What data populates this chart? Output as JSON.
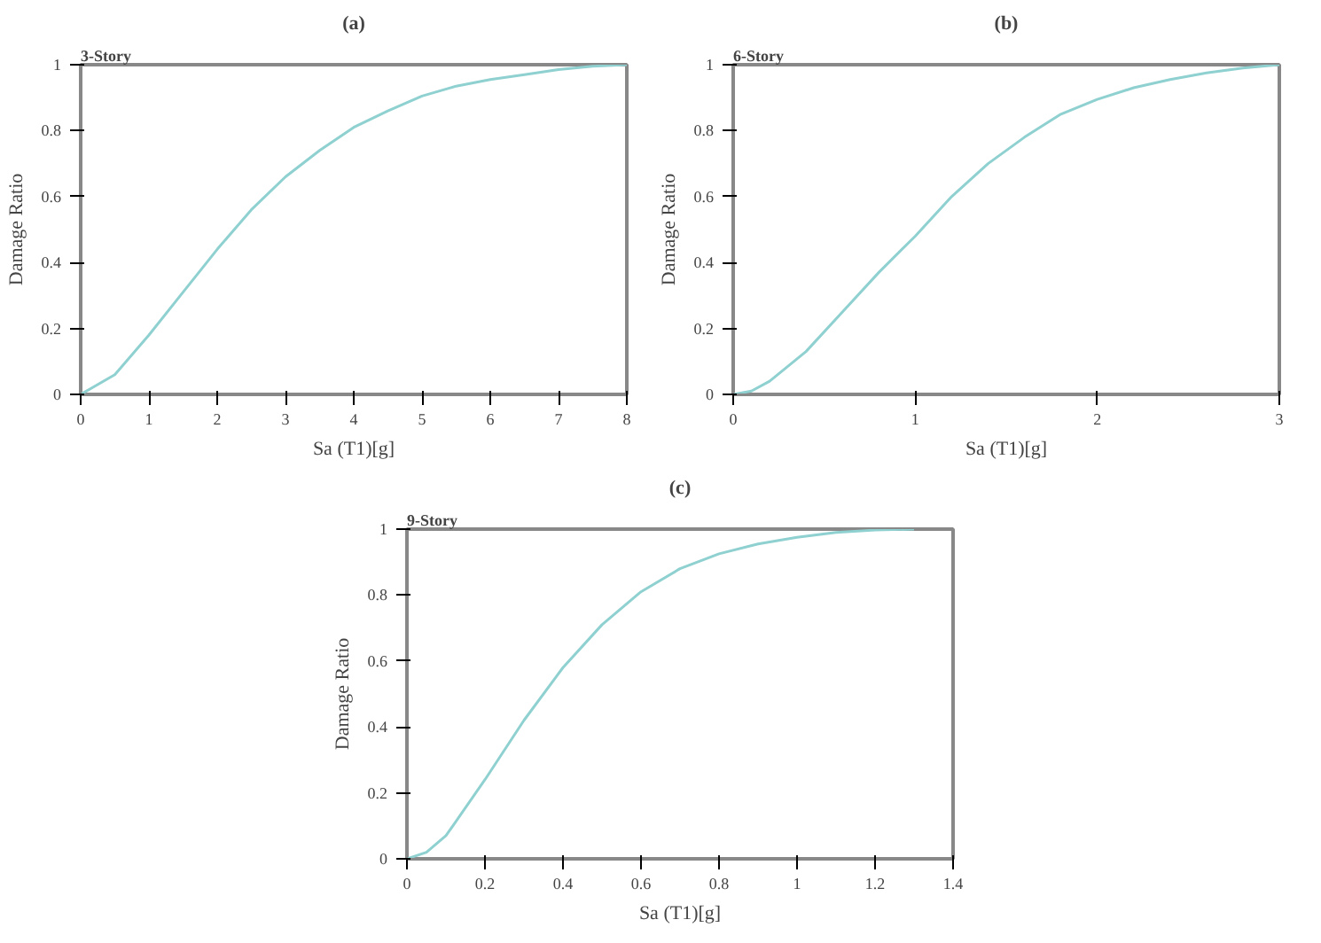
{
  "chart_data": [
    {
      "type": "line",
      "title": "(a)",
      "xlabel": "Sa (T1)[g]",
      "ylabel": "Damage Ratio",
      "annotations": [
        "3-Story"
      ],
      "x": [
        0,
        0.5,
        1,
        1.5,
        2,
        2.5,
        3,
        3.5,
        4,
        4.5,
        5,
        5.5,
        6,
        6.5,
        7,
        7.5,
        8
      ],
      "series": [
        {
          "color": "#8fd0d0",
          "values": [
            0,
            0.06,
            0.18,
            0.31,
            0.44,
            0.56,
            0.66,
            0.74,
            0.81,
            0.86,
            0.905,
            0.935,
            0.955,
            0.97,
            0.985,
            0.995,
            1
          ]
        }
      ],
      "xlim": [
        0,
        8
      ],
      "xticks": [
        0,
        1,
        2,
        3,
        4,
        5,
        6,
        7,
        8
      ],
      "ylim": [
        0,
        1
      ],
      "yticks": [
        0,
        0.2,
        0.4,
        0.6,
        0.8,
        1
      ],
      "grid": false,
      "line_style": "solid"
    },
    {
      "type": "line",
      "title": "(b)",
      "xlabel": "Sa (T1)[g]",
      "ylabel": "Damage Ratio",
      "annotations": [
        "6-Story"
      ],
      "x": [
        0,
        0.1,
        0.2,
        0.4,
        0.6,
        0.8,
        1,
        1.2,
        1.4,
        1.6,
        1.8,
        2,
        2.2,
        2.4,
        2.6,
        2.8,
        3
      ],
      "series": [
        {
          "color": "#8fd0d0",
          "values": [
            0,
            0.01,
            0.04,
            0.13,
            0.25,
            0.37,
            0.48,
            0.6,
            0.7,
            0.78,
            0.85,
            0.895,
            0.93,
            0.955,
            0.975,
            0.99,
            1
          ]
        }
      ],
      "xlim": [
        0,
        3
      ],
      "xticks": [
        0,
        1,
        2,
        3
      ],
      "ylim": [
        0,
        1
      ],
      "yticks": [
        0,
        0.2,
        0.4,
        0.6,
        0.8,
        1
      ],
      "grid": false,
      "line_style": "solid"
    },
    {
      "type": "line",
      "title": "(c)",
      "xlabel": "Sa (T1)[g]",
      "ylabel": "Damage Ratio",
      "annotations": [
        "9-Story"
      ],
      "x": [
        0,
        0.05,
        0.1,
        0.2,
        0.3,
        0.4,
        0.5,
        0.6,
        0.7,
        0.8,
        0.9,
        1,
        1.1,
        1.2,
        1.3
      ],
      "series": [
        {
          "color": "#8fd0d0",
          "values": [
            0,
            0.02,
            0.07,
            0.24,
            0.42,
            0.58,
            0.71,
            0.81,
            0.88,
            0.925,
            0.955,
            0.975,
            0.99,
            0.997,
            1
          ]
        }
      ],
      "xlim": [
        0,
        1.4
      ],
      "xticks": [
        0,
        0.2,
        0.4,
        0.6,
        0.8,
        1,
        1.2,
        1.4
      ],
      "ylim": [
        0,
        1
      ],
      "yticks": [
        0,
        0.2,
        0.4,
        0.6,
        0.8,
        1
      ],
      "grid": false,
      "line_style": "solid"
    }
  ]
}
